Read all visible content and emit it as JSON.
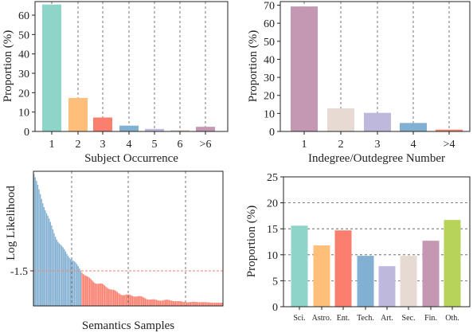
{
  "chart_data": [
    {
      "type": "bar",
      "xlabel": "Subject Occurrence",
      "ylabel": "Proportion (%)",
      "ylim": [
        0,
        67
      ],
      "yticks": [
        "0",
        "10",
        "20",
        "30",
        "40",
        "50",
        "60"
      ],
      "categories": [
        "1",
        "2",
        "3",
        "4",
        "5",
        "6",
        ">6"
      ],
      "values": [
        65.5,
        17.3,
        7.2,
        3.0,
        1.3,
        0.8,
        2.4
      ],
      "colors": [
        "#8FD4C8",
        "#FFBE7A",
        "#FA7F6F",
        "#82B0D2",
        "#BEB8DC",
        "#E7DAD2",
        "#C497B2"
      ],
      "grid": "vertical dashed"
    },
    {
      "type": "bar",
      "xlabel": "Indegree/Outdegree Number",
      "ylabel": "Proportion (%)",
      "ylim": [
        0,
        72
      ],
      "yticks": [
        "0",
        "10",
        "20",
        "30",
        "40",
        "50",
        "60",
        "70"
      ],
      "categories": [
        "1",
        "2",
        "3",
        "4",
        ">4"
      ],
      "values": [
        69.3,
        12.8,
        10.3,
        4.7,
        1.0
      ],
      "colors": [
        "#C497B2",
        "#E7DAD2",
        "#BEB8DC",
        "#82B0D2",
        "#FA7F6F"
      ],
      "grid": "vertical dashed"
    },
    {
      "type": "bar",
      "xlabel": "Semantics Samples",
      "ylabel": "Log Likelihood",
      "yticks": [
        "-1.5"
      ],
      "threshold": -1.5,
      "threshold_color": "#FA7F6F",
      "above_color": "#82B0D2",
      "below_color": "#FA7F6F",
      "grid": "vertical dashed"
    },
    {
      "type": "bar",
      "xlabel": "",
      "ylabel": "Proportion (%)",
      "ylim": [
        0,
        25
      ],
      "yticks": [
        "0",
        "5",
        "10",
        "15",
        "20",
        "25"
      ],
      "categories": [
        "Sci.",
        "Astro.",
        "Ent.",
        "Tech.",
        "Art.",
        "Sec.",
        "Fin.",
        "Oth."
      ],
      "values": [
        15.6,
        11.8,
        14.7,
        9.8,
        7.8,
        9.8,
        12.7,
        16.7
      ],
      "colors": [
        "#8FD4C8",
        "#FFBE7A",
        "#FA7F6F",
        "#82B0D2",
        "#BEB8DC",
        "#E7DAD2",
        "#C497B2",
        "#B8D35A"
      ],
      "grid": "horizontal dashed"
    }
  ]
}
